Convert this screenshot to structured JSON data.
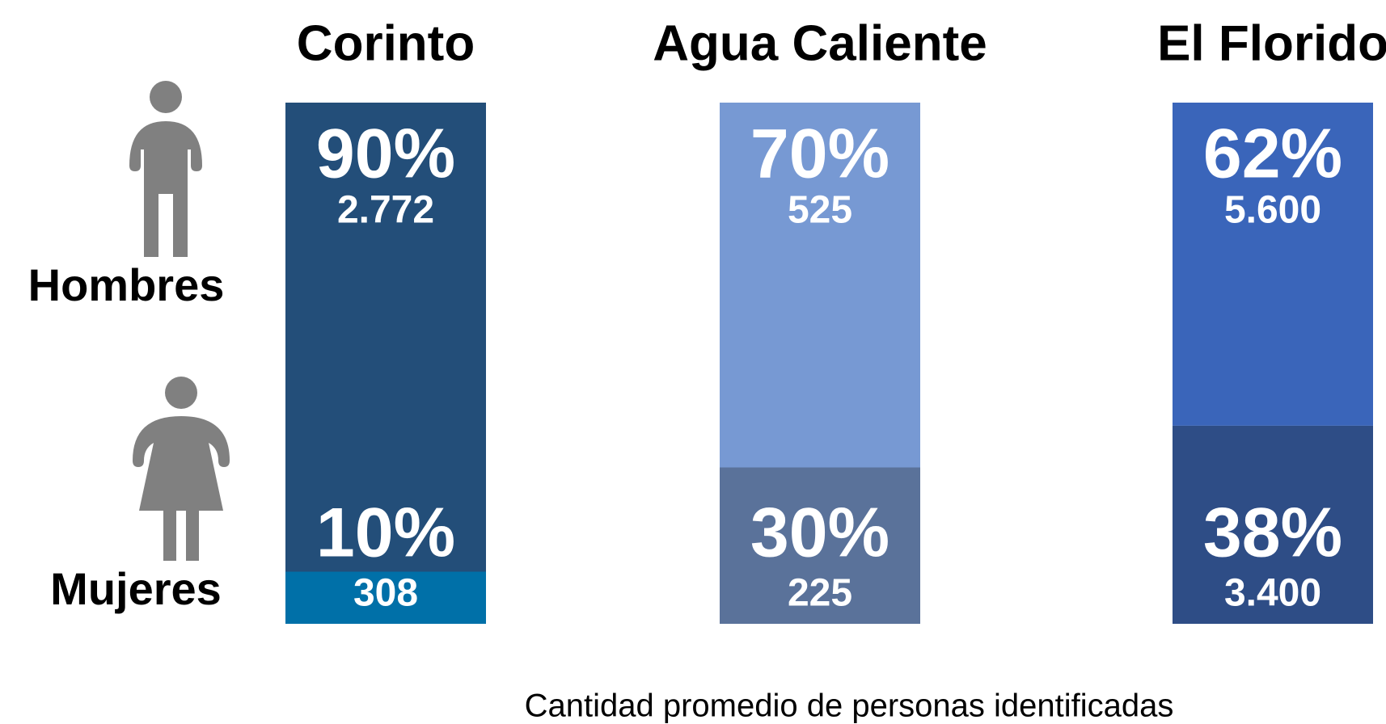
{
  "chart_data": {
    "type": "stacked_bar",
    "categories": [
      "Corinto",
      "Agua Caliente",
      "El Florido"
    ],
    "series": [
      {
        "name": "Hombres",
        "values": [
          90,
          70,
          62
        ],
        "value_labels": [
          "90%",
          "70%",
          "62%"
        ],
        "counts": [
          2772,
          525,
          5600
        ],
        "count_labels": [
          "2.772",
          "525",
          "5.600"
        ],
        "colors": [
          "#234e79",
          "#7799d3",
          "#3a65ba"
        ]
      },
      {
        "name": "Mujeres",
        "values": [
          10,
          30,
          38
        ],
        "value_labels": [
          "10%",
          "30%",
          "38%"
        ],
        "counts": [
          308,
          225,
          3400
        ],
        "count_labels": [
          "308",
          "225",
          "3.400"
        ],
        "colors": [
          "#0070a8",
          "#5a729a",
          "#2e4d86"
        ]
      }
    ],
    "x_label": "Cantidad promedio de personas identificadas"
  }
}
